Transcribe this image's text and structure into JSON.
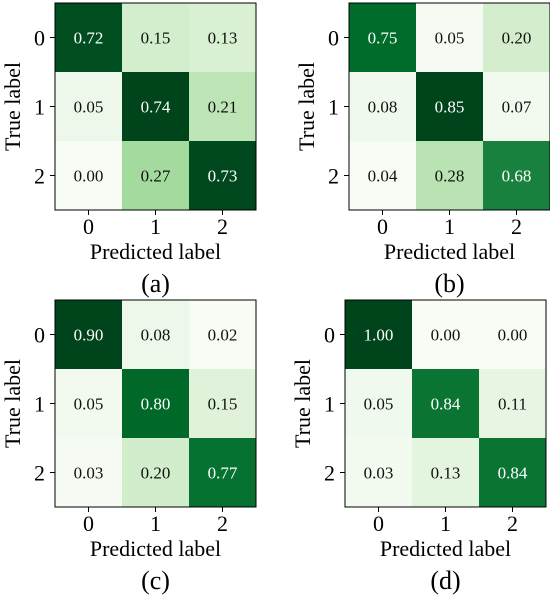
{
  "chart_data": [
    {
      "type": "heatmap",
      "caption": "(a)",
      "xlabel": "Predicted label",
      "ylabel": "True label",
      "x_ticks": [
        "0",
        "1",
        "2"
      ],
      "y_ticks": [
        "0",
        "1",
        "2"
      ],
      "values": [
        [
          0.72,
          0.15,
          0.13
        ],
        [
          0.05,
          0.74,
          0.21
        ],
        [
          0.0,
          0.27,
          0.73
        ]
      ],
      "labels": [
        [
          "0.72",
          "0.15",
          "0.13"
        ],
        [
          "0.05",
          "0.74",
          "0.21"
        ],
        [
          "0.00",
          "0.27",
          "0.73"
        ]
      ],
      "colormap": "Greens"
    },
    {
      "type": "heatmap",
      "caption": "(b)",
      "xlabel": "Predicted label",
      "ylabel": "True label",
      "x_ticks": [
        "0",
        "1",
        "2"
      ],
      "y_ticks": [
        "0",
        "1",
        "2"
      ],
      "values": [
        [
          0.75,
          0.05,
          0.2
        ],
        [
          0.08,
          0.85,
          0.07
        ],
        [
          0.04,
          0.28,
          0.68
        ]
      ],
      "labels": [
        [
          "0.75",
          "0.05",
          "0.20"
        ],
        [
          "0.08",
          "0.85",
          "0.07"
        ],
        [
          "0.04",
          "0.28",
          "0.68"
        ]
      ],
      "colormap": "Greens"
    },
    {
      "type": "heatmap",
      "caption": "(c)",
      "xlabel": "Predicted label",
      "ylabel": "True label",
      "x_ticks": [
        "0",
        "1",
        "2"
      ],
      "y_ticks": [
        "0",
        "1",
        "2"
      ],
      "values": [
        [
          0.9,
          0.08,
          0.02
        ],
        [
          0.05,
          0.8,
          0.15
        ],
        [
          0.03,
          0.2,
          0.77
        ]
      ],
      "labels": [
        [
          "0.90",
          "0.08",
          "0.02"
        ],
        [
          "0.05",
          "0.80",
          "0.15"
        ],
        [
          "0.03",
          "0.20",
          "0.77"
        ]
      ],
      "colormap": "Greens"
    },
    {
      "type": "heatmap",
      "caption": "(d)",
      "xlabel": "Predicted label",
      "ylabel": "True label",
      "x_ticks": [
        "0",
        "1",
        "2"
      ],
      "y_ticks": [
        "0",
        "1",
        "2"
      ],
      "values": [
        [
          1.0,
          0.0,
          0.0
        ],
        [
          0.05,
          0.84,
          0.11
        ],
        [
          0.03,
          0.13,
          0.84
        ]
      ],
      "labels": [
        [
          "1.00",
          "0.00",
          "0.00"
        ],
        [
          "0.05",
          "0.84",
          "0.11"
        ],
        [
          "0.03",
          "0.13",
          "0.84"
        ]
      ],
      "colormap": "Greens"
    }
  ]
}
